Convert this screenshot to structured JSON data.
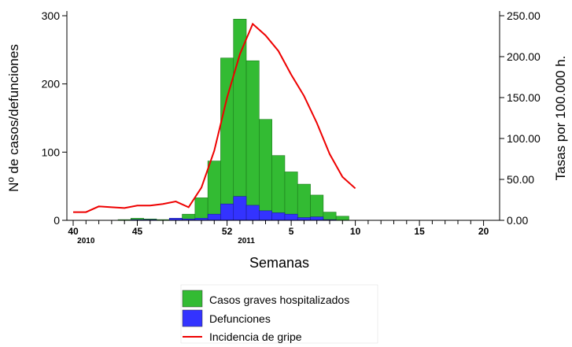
{
  "chart_data": {
    "type": "bar",
    "title": "",
    "xlabel": "Semanas",
    "ylabel": "Nº de casos/defunciones",
    "y2label": "Tasas por 100.000 h.",
    "ylim": [
      0,
      300
    ],
    "y2lim": [
      0,
      250
    ],
    "y_ticks": [
      "0",
      "100",
      "200",
      "300"
    ],
    "y2_ticks": [
      "0.00",
      "50.00",
      "100.00",
      "150.00",
      "200.00",
      "250.00"
    ],
    "x_tick_labels": [
      {
        "week_index": 0,
        "label": "40"
      },
      {
        "week_index": 5,
        "label": "45"
      },
      {
        "week_index": 12,
        "label": "52"
      },
      {
        "week_index": 17,
        "label": "5"
      },
      {
        "week_index": 22,
        "label": "10"
      },
      {
        "week_index": 27,
        "label": "15"
      },
      {
        "week_index": 32,
        "label": "20"
      }
    ],
    "year_labels": [
      {
        "week_index": 1,
        "label": "2010"
      },
      {
        "week_index": 13.5,
        "label": "2011"
      }
    ],
    "weeks": [
      "40",
      "41",
      "42",
      "43",
      "44",
      "45",
      "46",
      "47",
      "48",
      "49",
      "50",
      "51",
      "52",
      "1",
      "2",
      "3",
      "4",
      "5",
      "6",
      "7",
      "8",
      "9",
      "10",
      "11",
      "12",
      "13",
      "14",
      "15",
      "16",
      "17",
      "18",
      "19",
      "20"
    ],
    "series": [
      {
        "name": "Casos graves hospitalizados",
        "type": "bar",
        "axis": "left",
        "color": "#33bb33",
        "values": [
          0,
          0,
          0,
          0,
          1,
          3,
          2,
          1,
          3,
          9,
          33,
          87,
          238,
          295,
          234,
          148,
          95,
          71,
          53,
          37,
          12,
          6,
          0,
          0,
          0,
          0,
          0,
          0,
          0,
          0,
          0,
          0,
          0
        ]
      },
      {
        "name": "Defunciones",
        "type": "bar",
        "axis": "left",
        "color": "#3333ff",
        "values": [
          0,
          0,
          0,
          0,
          0,
          1,
          1,
          0,
          3,
          2,
          3,
          9,
          24,
          35,
          22,
          14,
          11,
          9,
          4,
          5,
          1,
          0,
          0,
          0,
          0,
          0,
          0,
          0,
          0,
          0,
          0,
          0,
          0
        ]
      },
      {
        "name": "Incidencia de gripe",
        "type": "line",
        "axis": "right",
        "color": "#ee0000",
        "values": [
          10,
          10,
          17,
          16,
          15,
          18,
          18,
          20,
          23,
          16,
          40,
          85,
          150,
          203,
          240,
          226,
          207,
          178,
          152,
          119,
          81,
          53,
          39
        ]
      }
    ],
    "legend_position": "bottom",
    "grid": false
  }
}
